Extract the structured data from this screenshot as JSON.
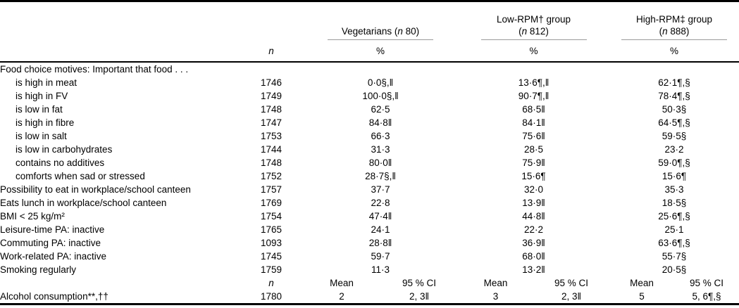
{
  "header": {
    "n_label": "n",
    "groups": [
      {
        "line1": "",
        "line2_pre": "Vegetarians (",
        "line2_n": "n",
        "line2_post": " 80)",
        "percent": "%"
      },
      {
        "line1": "Low-RPM† group",
        "line2_pre": "(",
        "line2_n": "n",
        "line2_post": " 812)",
        "percent": "%"
      },
      {
        "line1": "High-RPM‡ group",
        "line2_pre": "(",
        "line2_n": "n",
        "line2_post": " 888)",
        "percent": "%"
      }
    ]
  },
  "rows": [
    {
      "label": "Food choice motives: Important that food . . .",
      "n": "",
      "veg": "",
      "low": "",
      "high": ""
    },
    {
      "label": "is high in meat",
      "n": "1746",
      "veg": "0·0§,‖",
      "low": "13·6¶,‖",
      "high": "62·1¶,§"
    },
    {
      "label": "is high in FV",
      "n": "1749",
      "veg": "100·0§,‖",
      "low": "90·7¶,‖",
      "high": "78·4¶,§"
    },
    {
      "label": "is low in fat",
      "n": "1748",
      "veg": "62·5",
      "low": "68·5‖",
      "high": "50·3§"
    },
    {
      "label": "is high in fibre",
      "n": "1747",
      "veg": "84·8‖",
      "low": "84·1‖",
      "high": "64·5¶,§"
    },
    {
      "label": "is low in salt",
      "n": "1753",
      "veg": "66·3",
      "low": "75·6‖",
      "high": "59·5§"
    },
    {
      "label": "is low in carbohydrates",
      "n": "1744",
      "veg": "31·3",
      "low": "28·5",
      "high": "23·2"
    },
    {
      "label": "contains no additives",
      "n": "1748",
      "veg": "80·0‖",
      "low": "75·9‖",
      "high": "59·0¶,§"
    },
    {
      "label": "comforts when sad or stressed",
      "n": "1752",
      "veg": "28·7§,‖",
      "low": "15·6¶",
      "high": "15·6¶"
    },
    {
      "label": "Possibility to eat in workplace/school canteen",
      "n": "1757",
      "veg": "37·7",
      "low": "32·0",
      "high": "35·3"
    },
    {
      "label": "Eats lunch in workplace/school canteen",
      "n": "1769",
      "veg": "22·8",
      "low": "13·9‖",
      "high": "18·5§"
    },
    {
      "label": "BMI < 25 kg/m²",
      "n": "1754",
      "veg": "47·4‖",
      "low": "44·8‖",
      "high": "25·6¶,§"
    },
    {
      "label": "Leisure-time PA: inactive",
      "n": "1765",
      "veg": "24·1",
      "low": "22·2",
      "high": "25·1"
    },
    {
      "label": "Commuting PA: inactive",
      "n": "1093",
      "veg": "28·8‖",
      "low": "36·9‖",
      "high": "63·6¶,§"
    },
    {
      "label": "Work-related PA: inactive",
      "n": "1745",
      "veg": "59·7",
      "low": "68·0‖",
      "high": "55·7§"
    },
    {
      "label": "Smoking regularly",
      "n": "1759",
      "veg": "11·3",
      "low": "13·2‖",
      "high": "20·5§"
    }
  ],
  "subheader": {
    "n_label": "n",
    "mean_label": "Mean",
    "ci_label": "95 % CI"
  },
  "alcohol": {
    "label": "Alcohol consumption**,††",
    "n": "1780",
    "veg_mean": "2",
    "veg_ci": "2, 3‖",
    "low_mean": "3",
    "low_ci": "2, 3‖",
    "high_mean": "5",
    "high_ci": "5, 6¶,§"
  },
  "colors": {
    "rule": "#000000",
    "group_underline": "#9a9a9a",
    "text": "#000000"
  }
}
